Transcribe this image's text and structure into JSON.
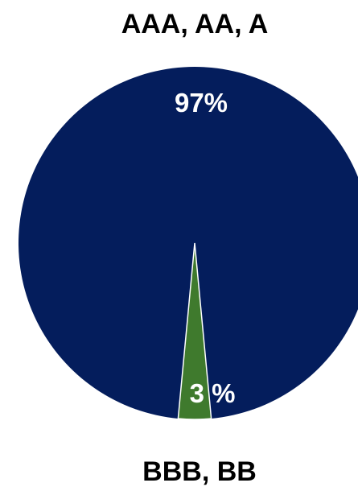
{
  "chart_data": {
    "type": "pie",
    "categories": [
      "AAA, AA, A",
      "BBB, BB"
    ],
    "values": [
      97,
      3
    ],
    "data_labels": [
      "97%",
      "3 %"
    ],
    "colors": [
      "#041d5c",
      "#3f7a2d"
    ],
    "legend": "none",
    "grid": false
  }
}
